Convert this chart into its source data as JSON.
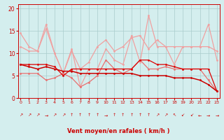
{
  "x": [
    0,
    1,
    2,
    3,
    4,
    5,
    6,
    7,
    8,
    9,
    10,
    11,
    12,
    13,
    14,
    15,
    16,
    17,
    18,
    19,
    20,
    21,
    22,
    23
  ],
  "series_lpink_top": [
    14.5,
    11.5,
    10.5,
    16.5,
    10.0,
    5.5,
    11.0,
    2.5,
    6.5,
    6.5,
    11.0,
    8.5,
    7.5,
    14.0,
    8.0,
    18.5,
    11.5,
    11.5,
    7.5,
    11.5,
    11.5,
    11.5,
    16.5,
    8.5
  ],
  "series_lpink_bot": [
    11.5,
    10.5,
    10.5,
    15.5,
    10.0,
    5.5,
    10.5,
    6.5,
    8.0,
    11.5,
    13.0,
    10.5,
    11.5,
    13.5,
    14.0,
    11.0,
    13.0,
    11.5,
    11.5,
    11.5,
    11.5,
    11.5,
    11.5,
    10.5
  ],
  "series_mpink": [
    5.5,
    5.5,
    5.5,
    4.0,
    4.5,
    5.5,
    4.5,
    2.5,
    3.5,
    5.0,
    8.5,
    6.5,
    5.5,
    6.5,
    8.5,
    6.5,
    6.5,
    7.0,
    6.5,
    6.5,
    6.5,
    6.5,
    4.0,
    1.5
  ],
  "series_dred_flat": [
    7.5,
    7.5,
    7.5,
    7.5,
    7.0,
    5.0,
    6.5,
    6.5,
    6.5,
    6.5,
    6.5,
    6.5,
    6.5,
    6.5,
    8.5,
    8.5,
    7.5,
    7.5,
    7.0,
    6.5,
    6.5,
    6.5,
    6.5,
    1.5
  ],
  "series_dred_diag": [
    7.5,
    7.0,
    6.5,
    7.0,
    6.5,
    6.0,
    6.0,
    5.5,
    5.5,
    5.5,
    5.5,
    5.5,
    5.5,
    5.5,
    5.0,
    5.0,
    5.0,
    5.0,
    4.5,
    4.5,
    4.5,
    4.0,
    3.0,
    1.5
  ],
  "arrows": [
    "↗",
    "↗",
    "↗",
    "→",
    "↗",
    "↗",
    "↑",
    "↑",
    "↑",
    "↑",
    "→",
    "↑",
    "↑",
    "↑",
    "↑",
    "↑",
    "↗",
    "↗",
    "↖",
    "↙",
    "↙",
    "←",
    "→",
    "→"
  ],
  "color_lpink": "#f0a0a0",
  "color_mpink": "#e87070",
  "color_dred": "#cc0000",
  "color_dred2": "#dd0000",
  "bg_color": "#d4eeee",
  "grid_color": "#aacccc",
  "xlabel": "Vent moyen/en rafales ( km/h )",
  "yticks": [
    0,
    5,
    10,
    15,
    20
  ],
  "xlim": [
    -0.3,
    23.3
  ],
  "ylim": [
    0,
    21
  ]
}
